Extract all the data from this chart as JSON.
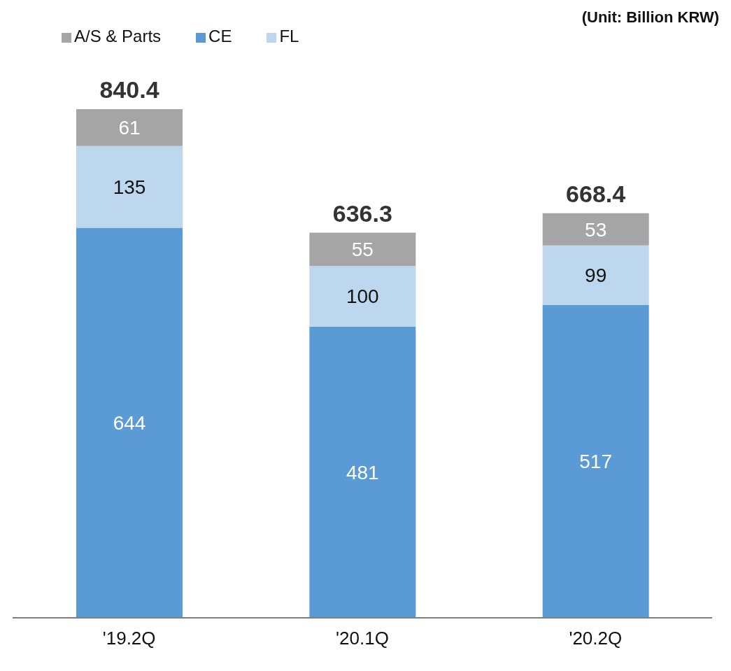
{
  "chart_data": {
    "type": "bar",
    "stacked": true,
    "categories": [
      "'19.2Q",
      "'20.1Q",
      "'20.2Q"
    ],
    "series": [
      {
        "name": "CE",
        "color": "#5b9bd5",
        "values": [
          644.4,
          481.3,
          516.6
        ],
        "value_labels": [
          "644",
          "481",
          "517"
        ]
      },
      {
        "name": "FL",
        "color": "#bdd7ee",
        "values": [
          135,
          100,
          98.8
        ],
        "value_labels": [
          "135",
          "100",
          "99"
        ]
      },
      {
        "name": "A/S & Parts",
        "color": "#a5a5a5",
        "values": [
          61,
          55,
          53
        ],
        "value_labels": [
          "61",
          "55",
          "53"
        ]
      }
    ],
    "totals": [
      "840.4",
      "636.3",
      "668.4"
    ],
    "legend": "top left",
    "grid": false,
    "annotations": [
      "(Unit: Billion KRW)"
    ]
  }
}
